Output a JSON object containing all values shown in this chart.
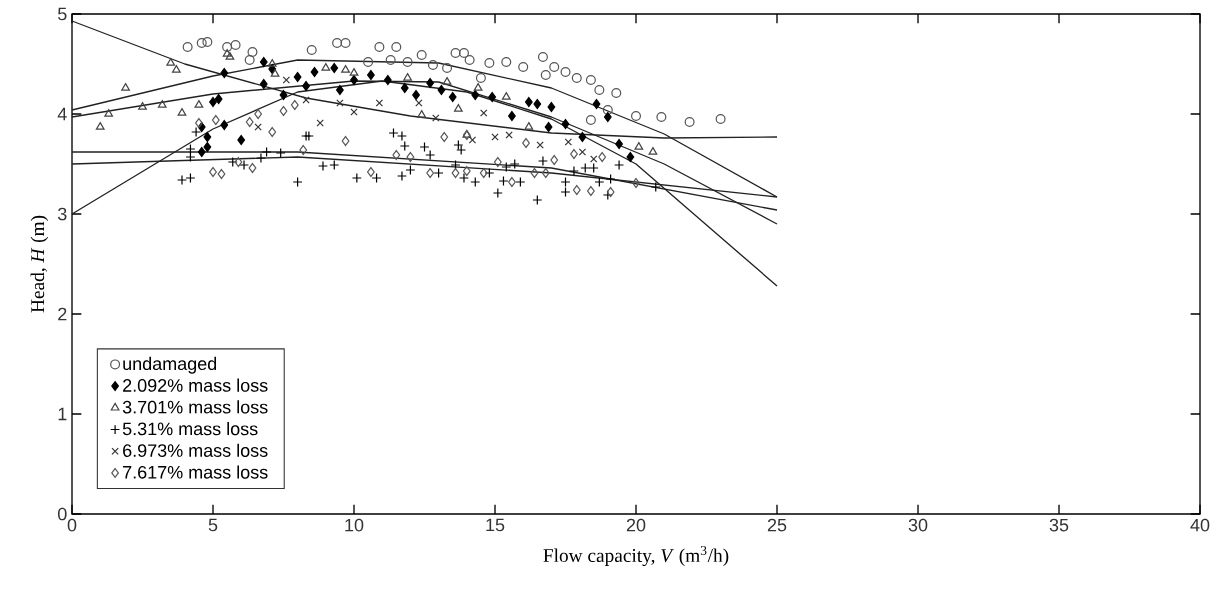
{
  "chart_data": {
    "type": "scatter",
    "xlabel": "Flow capacity, *V* (m$^{3}$/h)",
    "ylabel": "Head, *H* (m)",
    "xlim": [
      0,
      40
    ],
    "ylim": [
      0,
      5
    ],
    "xticks": [
      0,
      5,
      10,
      15,
      20,
      25,
      30,
      35,
      40
    ],
    "yticks": [
      0,
      1,
      2,
      3,
      4,
      5
    ],
    "grid": false,
    "legend": "bottom left",
    "series": [
      {
        "name": "undamaged",
        "marker": "circle",
        "color": "#555555",
        "x": [
          4.1,
          4.6,
          4.8,
          5.5,
          5.8,
          6.4,
          6.3,
          8.5,
          9.4,
          9.7,
          10.9,
          11.5,
          10.5,
          11.3,
          11.9,
          12.4,
          12.8,
          13.3,
          13.6,
          13.9,
          14.1,
          14.5,
          14.8,
          15.4,
          16.0,
          16.7,
          16.8,
          17.1,
          17.5,
          17.9,
          18.4,
          18.7,
          19.3,
          18.4,
          19.0,
          20.0,
          20.9,
          21.9,
          23.0
        ],
        "values": [
          4.67,
          4.71,
          4.72,
          4.67,
          4.69,
          4.62,
          4.54,
          4.64,
          4.71,
          4.71,
          4.67,
          4.67,
          4.52,
          4.54,
          4.52,
          4.59,
          4.49,
          4.46,
          4.61,
          4.61,
          4.54,
          4.36,
          4.51,
          4.52,
          4.47,
          4.57,
          4.39,
          4.47,
          4.42,
          4.36,
          4.34,
          4.24,
          4.21,
          3.94,
          4.04,
          3.98,
          3.97,
          3.92,
          3.95
        ]
      },
      {
        "name": "2.092% mass loss",
        "marker": "diamond_filled",
        "color": "#000000",
        "x": [
          5.0,
          5.2,
          4.6,
          5.4,
          4.8,
          4.8,
          4.6,
          6.0,
          5.4,
          6.8,
          6.8,
          7.1,
          7.5,
          8.0,
          8.3,
          8.6,
          9.3,
          9.5,
          10.0,
          10.6,
          11.2,
          11.8,
          12.2,
          12.7,
          13.1,
          13.5,
          14.3,
          14.9,
          15.6,
          16.2,
          16.5,
          16.9,
          17.0,
          17.5,
          18.1,
          18.6,
          19.0,
          19.8,
          19.4
        ],
        "values": [
          4.12,
          4.15,
          3.87,
          3.89,
          3.77,
          3.67,
          3.62,
          3.74,
          4.41,
          4.52,
          4.3,
          4.45,
          4.19,
          4.37,
          4.28,
          4.42,
          4.46,
          4.24,
          4.34,
          4.39,
          4.34,
          4.26,
          4.19,
          4.31,
          4.24,
          4.17,
          4.19,
          4.17,
          3.98,
          4.12,
          4.1,
          3.87,
          4.07,
          3.9,
          3.77,
          4.1,
          3.97,
          3.57,
          3.7
        ]
      },
      {
        "name": "3.701% mass loss",
        "marker": "triangle",
        "color": "#444444",
        "x": [
          1.0,
          1.3,
          1.9,
          2.5,
          3.2,
          3.5,
          3.7,
          3.9,
          4.5,
          5.5,
          5.6,
          7.1,
          7.2,
          9.0,
          9.7,
          10.0,
          11.9,
          12.4,
          13.3,
          13.7,
          14.4,
          15.4,
          14.0,
          16.2,
          20.1,
          20.6
        ],
        "values": [
          3.87,
          4.0,
          4.26,
          4.07,
          4.09,
          4.51,
          4.44,
          4.01,
          4.09,
          4.6,
          4.57,
          4.5,
          4.4,
          4.46,
          4.44,
          4.41,
          4.36,
          3.99,
          4.32,
          4.05,
          4.26,
          4.17,
          3.79,
          3.87,
          3.67,
          3.62
        ]
      },
      {
        "name": "5.31% mass loss",
        "marker": "plus",
        "color": "#000000",
        "x": [
          3.9,
          4.2,
          4.4,
          4.2,
          4.2,
          5.7,
          6.1,
          6.7,
          6.9,
          7.4,
          8.0,
          8.3,
          8.4,
          8.9,
          9.3,
          10.1,
          10.8,
          11.4,
          11.7,
          11.8,
          11.7,
          12.0,
          12.5,
          12.7,
          13.0,
          13.6,
          13.7,
          13.8,
          13.9,
          14.3,
          14.8,
          15.1,
          15.3,
          15.4,
          15.7,
          15.9,
          16.5,
          16.7,
          17.5,
          17.5,
          17.8,
          18.2,
          18.5,
          18.7,
          19.0,
          19.1,
          19.4,
          20.7
        ],
        "values": [
          3.34,
          3.36,
          3.82,
          3.65,
          3.57,
          3.52,
          3.49,
          3.56,
          3.62,
          3.61,
          3.32,
          3.78,
          3.78,
          3.48,
          3.49,
          3.36,
          3.36,
          3.81,
          3.78,
          3.68,
          3.38,
          3.44,
          3.67,
          3.59,
          3.41,
          3.49,
          3.69,
          3.64,
          3.36,
          3.32,
          3.41,
          3.21,
          3.33,
          3.47,
          3.5,
          3.32,
          3.14,
          3.53,
          3.32,
          3.22,
          3.43,
          3.46,
          3.46,
          3.32,
          3.19,
          3.35,
          3.49,
          3.27
        ]
      },
      {
        "name": "6.973% mass loss",
        "marker": "cross",
        "color": "#333333",
        "x": [
          6.6,
          7.6,
          8.3,
          8.8,
          9.5,
          10.0,
          10.9,
          12.3,
          12.9,
          14.6,
          14.2,
          15.0,
          15.5,
          16.6,
          17.6,
          18.1,
          18.5
        ],
        "values": [
          3.87,
          4.34,
          4.14,
          3.91,
          4.11,
          4.02,
          4.11,
          4.11,
          3.96,
          4.01,
          3.74,
          3.77,
          3.79,
          3.69,
          3.72,
          3.62,
          3.55
        ]
      },
      {
        "name": "7.617% mass loss",
        "marker": "diamond",
        "color": "#555555",
        "x": [
          4.5,
          5.1,
          6.3,
          6.6,
          7.1,
          7.5,
          7.9,
          8.2,
          5.0,
          5.3,
          6.4,
          5.9,
          9.7,
          10.6,
          11.5,
          12.0,
          12.7,
          13.2,
          13.6,
          14.0,
          14.0,
          14.6,
          15.1,
          15.6,
          16.1,
          16.4,
          16.8,
          17.1,
          17.9,
          18.4,
          19.1,
          18.8,
          20.0,
          17.8
        ],
        "values": [
          3.91,
          3.94,
          3.92,
          4.0,
          3.82,
          4.03,
          4.09,
          3.64,
          3.42,
          3.4,
          3.46,
          3.52,
          3.73,
          3.42,
          3.59,
          3.57,
          3.41,
          3.77,
          3.41,
          3.43,
          3.79,
          3.41,
          3.52,
          3.32,
          3.71,
          3.41,
          3.41,
          3.54,
          3.24,
          3.23,
          3.22,
          3.57,
          3.31,
          3.6
        ]
      },
      {
        "type": "line",
        "marker": "none",
        "color": "#222222",
        "x": [
          0,
          5,
          8,
          13,
          17,
          21,
          25
        ],
        "values": [
          4.04,
          4.38,
          4.54,
          4.51,
          4.26,
          3.8,
          3.17
        ]
      },
      {
        "type": "line",
        "marker": "none",
        "color": "#222222",
        "x": [
          0,
          5,
          10,
          13,
          17,
          21,
          25
        ],
        "values": [
          3.97,
          4.2,
          4.33,
          4.32,
          3.97,
          3.5,
          2.9
        ]
      },
      {
        "type": "line",
        "marker": "none",
        "color": "#222222",
        "x": [
          0,
          5,
          8,
          11,
          14,
          17,
          20,
          25
        ],
        "values": [
          3.0,
          3.85,
          4.22,
          4.33,
          4.22,
          3.95,
          3.5,
          2.28
        ]
      },
      {
        "type": "line",
        "marker": "none",
        "color": "#222222",
        "x": [
          0,
          4,
          8.3,
          12,
          17,
          21,
          25
        ],
        "values": [
          4.93,
          4.5,
          4.16,
          3.98,
          3.81,
          3.76,
          3.77
        ]
      },
      {
        "type": "line",
        "marker": "none",
        "color": "#222222",
        "x": [
          0,
          8,
          17,
          25
        ],
        "values": [
          3.62,
          3.62,
          3.46,
          3.04
        ]
      },
      {
        "type": "line",
        "marker": "none",
        "color": "#222222",
        "x": [
          0,
          8,
          17,
          25
        ],
        "values": [
          3.5,
          3.57,
          3.41,
          3.17
        ]
      }
    ]
  }
}
